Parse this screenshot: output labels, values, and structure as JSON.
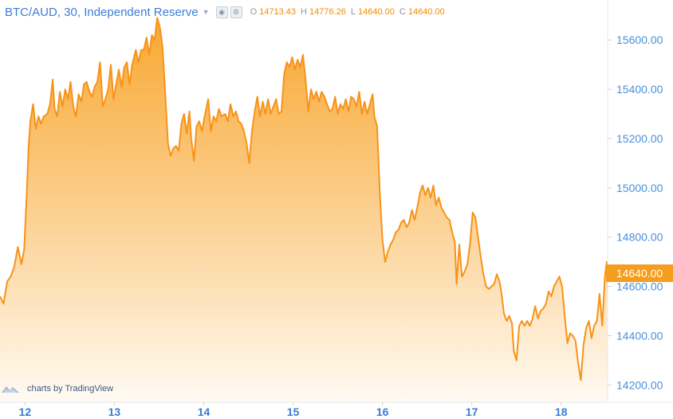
{
  "header": {
    "title": "BTC/AUD, 30, Independent Reserve",
    "open_label": "O",
    "open": "14713.43",
    "high_label": "H",
    "high": "14776.26",
    "low_label": "L",
    "low": "14640.00",
    "close_label": "C",
    "close": "14640.00"
  },
  "price_tag": "14640.00",
  "branding": {
    "text": "charts by TradingView",
    "icon": "tradingview-cloud-icon"
  },
  "colors": {
    "line": "#f7931a",
    "fill_top": "#f8a326",
    "fill_bottom": "#fffaf3",
    "axis_text": "#4a90d9",
    "tag": "#f59d1c"
  },
  "chart_data": {
    "type": "area",
    "title": "BTC/AUD, 30, Independent Reserve",
    "xlabel": "",
    "ylabel": "",
    "x_ticks": [
      12,
      13,
      14,
      15,
      16,
      17,
      18
    ],
    "y_ticks": [
      14200,
      14400,
      14600,
      14800,
      15000,
      15200,
      15400,
      15600
    ],
    "y_tick_labels": [
      "14200.00",
      "14400.00",
      "14600.00",
      "14800.00",
      "15000.00",
      "15200.00",
      "15400.00",
      "15600.00"
    ],
    "xlim": [
      11.72,
      18.52
    ],
    "ylim": [
      14130,
      15730
    ],
    "grid": false,
    "last_value": 14640.0,
    "series": [
      {
        "values": [
          [
            11.72,
            14560
          ],
          [
            11.76,
            14530
          ],
          [
            11.8,
            14620
          ],
          [
            11.84,
            14640
          ],
          [
            11.88,
            14680
          ],
          [
            11.92,
            14760
          ],
          [
            11.96,
            14690
          ],
          [
            11.99,
            14750
          ],
          [
            12.02,
            14980
          ],
          [
            12.04,
            15170
          ],
          [
            12.06,
            15270
          ],
          [
            12.09,
            15340
          ],
          [
            12.12,
            15240
          ],
          [
            12.15,
            15290
          ],
          [
            12.18,
            15260
          ],
          [
            12.21,
            15290
          ],
          [
            12.25,
            15300
          ],
          [
            12.28,
            15340
          ],
          [
            12.31,
            15440
          ],
          [
            12.33,
            15320
          ],
          [
            12.36,
            15290
          ],
          [
            12.39,
            15390
          ],
          [
            12.42,
            15330
          ],
          [
            12.45,
            15400
          ],
          [
            12.48,
            15360
          ],
          [
            12.51,
            15430
          ],
          [
            12.54,
            15330
          ],
          [
            12.57,
            15290
          ],
          [
            12.6,
            15380
          ],
          [
            12.63,
            15350
          ],
          [
            12.66,
            15420
          ],
          [
            12.69,
            15430
          ],
          [
            12.72,
            15390
          ],
          [
            12.75,
            15370
          ],
          [
            12.78,
            15410
          ],
          [
            12.81,
            15430
          ],
          [
            12.84,
            15510
          ],
          [
            12.87,
            15330
          ],
          [
            12.9,
            15360
          ],
          [
            12.93,
            15400
          ],
          [
            12.96,
            15500
          ],
          [
            12.99,
            15360
          ],
          [
            13.02,
            15420
          ],
          [
            13.05,
            15480
          ],
          [
            13.08,
            15410
          ],
          [
            13.11,
            15490
          ],
          [
            13.14,
            15510
          ],
          [
            13.17,
            15420
          ],
          [
            13.2,
            15500
          ],
          [
            13.24,
            15560
          ],
          [
            13.27,
            15510
          ],
          [
            13.3,
            15560
          ],
          [
            13.33,
            15560
          ],
          [
            13.36,
            15610
          ],
          [
            13.39,
            15540
          ],
          [
            13.42,
            15620
          ],
          [
            13.45,
            15600
          ],
          [
            13.48,
            15690
          ],
          [
            13.51,
            15650
          ],
          [
            13.54,
            15570
          ],
          [
            13.57,
            15380
          ],
          [
            13.6,
            15180
          ],
          [
            13.63,
            15130
          ],
          [
            13.66,
            15160
          ],
          [
            13.69,
            15170
          ],
          [
            13.72,
            15150
          ],
          [
            13.75,
            15260
          ],
          [
            13.78,
            15300
          ],
          [
            13.81,
            15220
          ],
          [
            13.84,
            15310
          ],
          [
            13.86,
            15200
          ],
          [
            13.89,
            15110
          ],
          [
            13.92,
            15250
          ],
          [
            13.95,
            15270
          ],
          [
            13.98,
            15230
          ],
          [
            14.01,
            15290
          ],
          [
            14.05,
            15360
          ],
          [
            14.08,
            15230
          ],
          [
            14.11,
            15290
          ],
          [
            14.14,
            15270
          ],
          [
            14.17,
            15320
          ],
          [
            14.2,
            15290
          ],
          [
            14.24,
            15300
          ],
          [
            14.27,
            15270
          ],
          [
            14.3,
            15340
          ],
          [
            14.33,
            15290
          ],
          [
            14.36,
            15310
          ],
          [
            14.39,
            15270
          ],
          [
            14.42,
            15260
          ],
          [
            14.45,
            15230
          ],
          [
            14.48,
            15180
          ],
          [
            14.51,
            15100
          ],
          [
            14.54,
            15230
          ],
          [
            14.57,
            15310
          ],
          [
            14.6,
            15370
          ],
          [
            14.63,
            15290
          ],
          [
            14.66,
            15350
          ],
          [
            14.69,
            15300
          ],
          [
            14.72,
            15360
          ],
          [
            14.75,
            15300
          ],
          [
            14.78,
            15330
          ],
          [
            14.81,
            15360
          ],
          [
            14.84,
            15300
          ],
          [
            14.87,
            15310
          ],
          [
            14.9,
            15460
          ],
          [
            14.93,
            15510
          ],
          [
            14.96,
            15490
          ],
          [
            14.99,
            15530
          ],
          [
            15.02,
            15480
          ],
          [
            15.05,
            15520
          ],
          [
            15.08,
            15490
          ],
          [
            15.11,
            15540
          ],
          [
            15.14,
            15440
          ],
          [
            15.17,
            15310
          ],
          [
            15.2,
            15400
          ],
          [
            15.23,
            15360
          ],
          [
            15.26,
            15390
          ],
          [
            15.29,
            15350
          ],
          [
            15.32,
            15390
          ],
          [
            15.35,
            15370
          ],
          [
            15.38,
            15340
          ],
          [
            15.41,
            15310
          ],
          [
            15.44,
            15320
          ],
          [
            15.47,
            15370
          ],
          [
            15.5,
            15300
          ],
          [
            15.53,
            15340
          ],
          [
            15.56,
            15320
          ],
          [
            15.59,
            15360
          ],
          [
            15.62,
            15310
          ],
          [
            15.65,
            15370
          ],
          [
            15.68,
            15360
          ],
          [
            15.71,
            15330
          ],
          [
            15.74,
            15390
          ],
          [
            15.77,
            15300
          ],
          [
            15.8,
            15350
          ],
          [
            15.83,
            15300
          ],
          [
            15.86,
            15340
          ],
          [
            15.89,
            15380
          ],
          [
            15.91,
            15290
          ],
          [
            15.94,
            15250
          ],
          [
            15.97,
            14980
          ],
          [
            16.0,
            14790
          ],
          [
            16.03,
            14700
          ],
          [
            16.06,
            14740
          ],
          [
            16.09,
            14770
          ],
          [
            16.12,
            14790
          ],
          [
            16.15,
            14820
          ],
          [
            16.18,
            14830
          ],
          [
            16.21,
            14860
          ],
          [
            16.24,
            14870
          ],
          [
            16.27,
            14840
          ],
          [
            16.3,
            14860
          ],
          [
            16.33,
            14910
          ],
          [
            16.36,
            14870
          ],
          [
            16.39,
            14920
          ],
          [
            16.42,
            14980
          ],
          [
            16.45,
            15010
          ],
          [
            16.48,
            14970
          ],
          [
            16.51,
            15000
          ],
          [
            16.54,
            14960
          ],
          [
            16.57,
            15010
          ],
          [
            16.6,
            14930
          ],
          [
            16.63,
            14960
          ],
          [
            16.66,
            14920
          ],
          [
            16.69,
            14900
          ],
          [
            16.72,
            14880
          ],
          [
            16.75,
            14870
          ],
          [
            16.78,
            14820
          ],
          [
            16.81,
            14780
          ],
          [
            16.83,
            14610
          ],
          [
            16.86,
            14770
          ],
          [
            16.89,
            14640
          ],
          [
            16.92,
            14660
          ],
          [
            16.95,
            14690
          ],
          [
            16.98,
            14770
          ],
          [
            17.01,
            14900
          ],
          [
            17.04,
            14880
          ],
          [
            17.07,
            14800
          ],
          [
            17.1,
            14720
          ],
          [
            17.13,
            14650
          ],
          [
            17.16,
            14600
          ],
          [
            17.19,
            14590
          ],
          [
            17.22,
            14600
          ],
          [
            17.25,
            14610
          ],
          [
            17.28,
            14650
          ],
          [
            17.31,
            14620
          ],
          [
            17.33,
            14580
          ],
          [
            17.36,
            14490
          ],
          [
            17.39,
            14460
          ],
          [
            17.42,
            14480
          ],
          [
            17.45,
            14450
          ],
          [
            17.47,
            14340
          ],
          [
            17.5,
            14300
          ],
          [
            17.53,
            14440
          ],
          [
            17.56,
            14460
          ],
          [
            17.59,
            14440
          ],
          [
            17.62,
            14460
          ],
          [
            17.65,
            14440
          ],
          [
            17.68,
            14470
          ],
          [
            17.71,
            14520
          ],
          [
            17.74,
            14470
          ],
          [
            17.77,
            14500
          ],
          [
            17.8,
            14510
          ],
          [
            17.83,
            14530
          ],
          [
            17.86,
            14580
          ],
          [
            17.89,
            14560
          ],
          [
            17.92,
            14600
          ],
          [
            17.95,
            14620
          ],
          [
            17.98,
            14640
          ],
          [
            18.01,
            14600
          ],
          [
            18.04,
            14480
          ],
          [
            18.07,
            14370
          ],
          [
            18.1,
            14410
          ],
          [
            18.13,
            14400
          ],
          [
            18.16,
            14380
          ],
          [
            18.19,
            14290
          ],
          [
            18.22,
            14220
          ],
          [
            18.25,
            14360
          ],
          [
            18.28,
            14430
          ],
          [
            18.31,
            14460
          ],
          [
            18.34,
            14390
          ],
          [
            18.37,
            14440
          ],
          [
            18.4,
            14460
          ],
          [
            18.43,
            14570
          ],
          [
            18.46,
            14440
          ],
          [
            18.49,
            14640
          ],
          [
            18.51,
            14700
          ],
          [
            18.52,
            14640
          ]
        ]
      }
    ]
  }
}
